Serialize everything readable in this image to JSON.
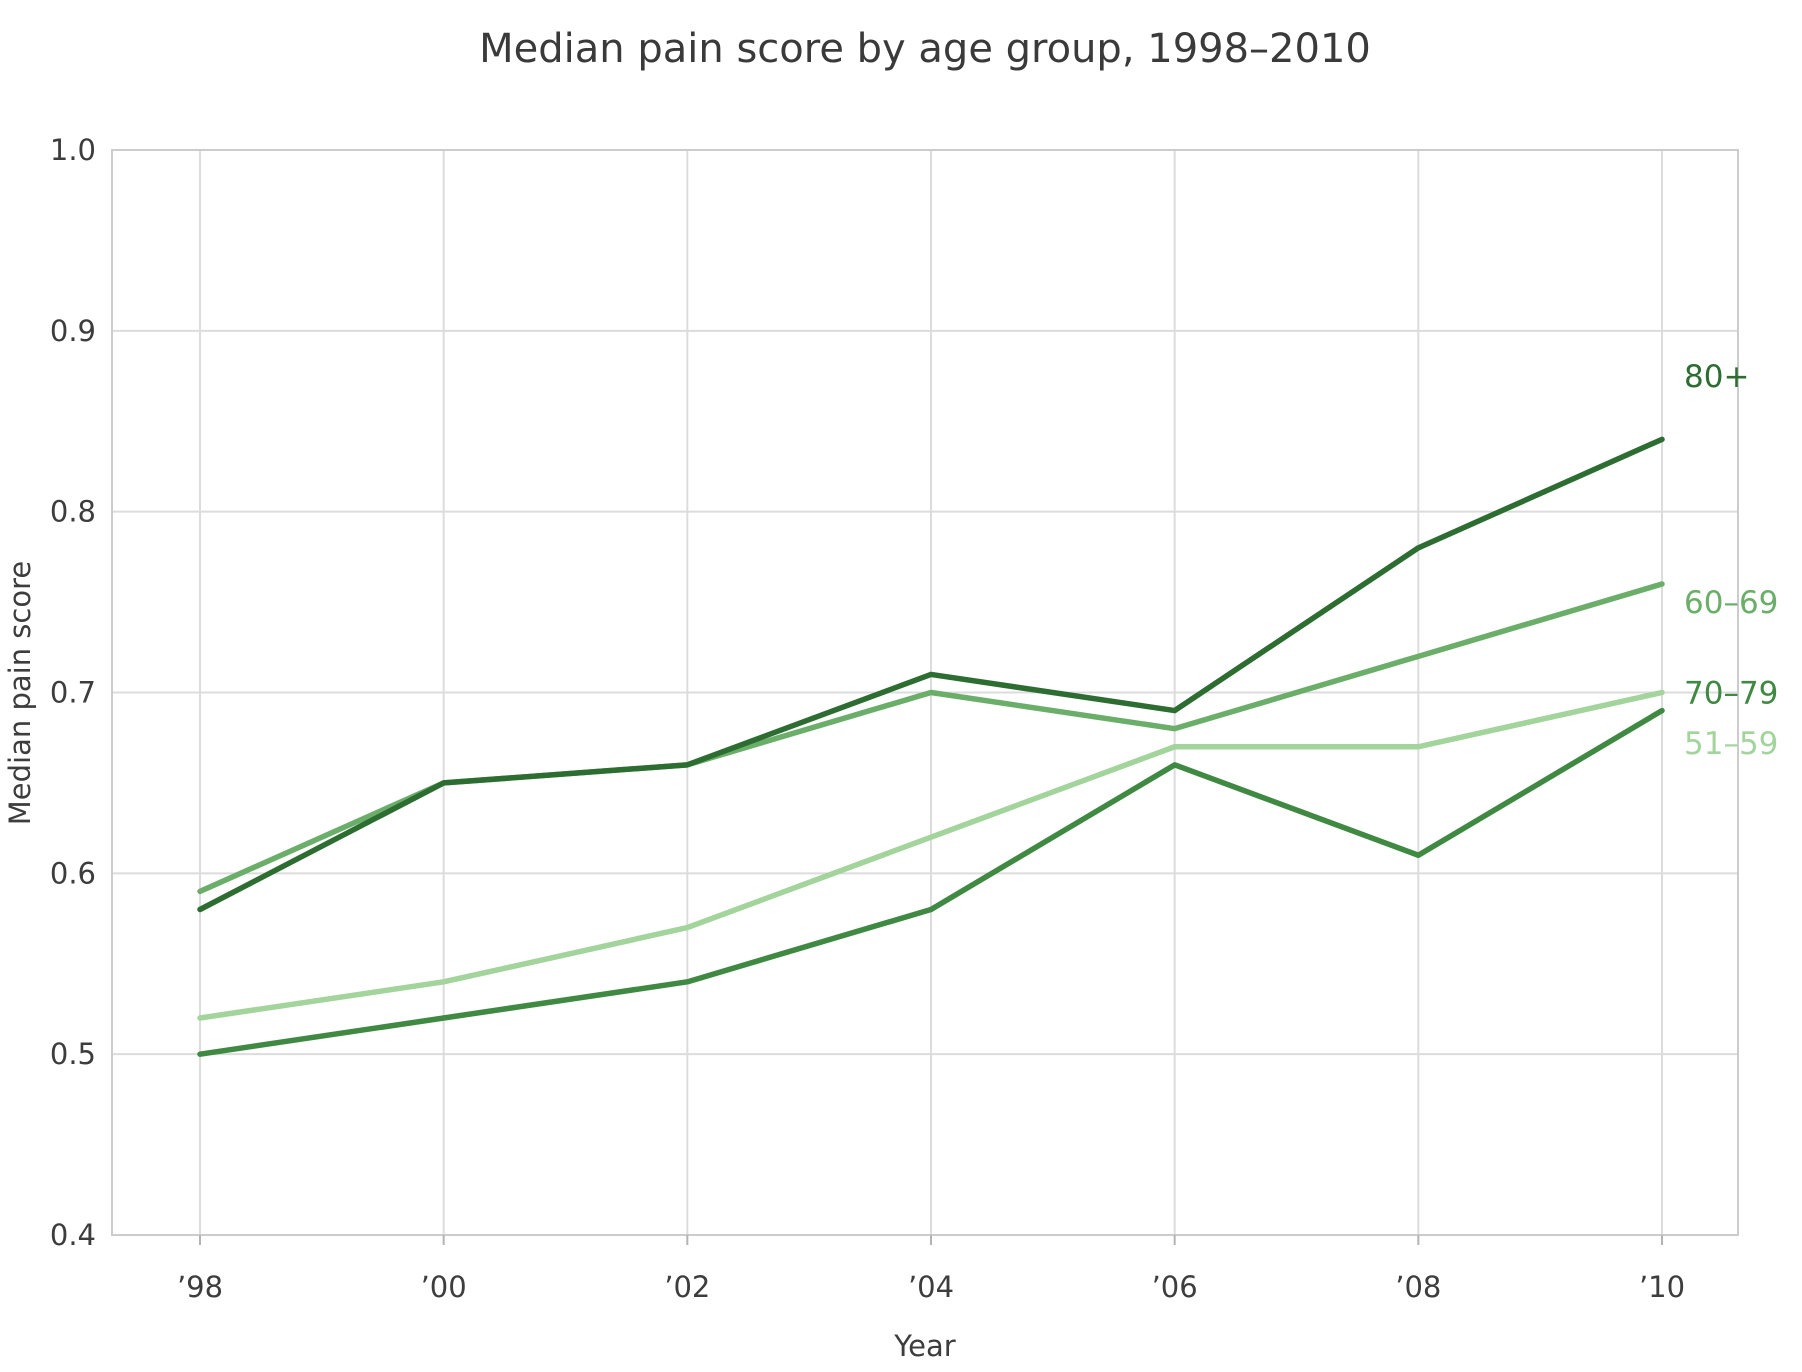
{
  "figure": {
    "background": "#ffffff",
    "grid_color": "#dcdcdc",
    "spine_color": "#cccccc",
    "tick_mark_color": "#b3b3b3",
    "text_color": "#3d3d3d",
    "title_color": "#3a3a3a"
  },
  "chart_data": {
    "type": "line",
    "title": "Median pain score by age group, 1998–2010",
    "xlabel": "Year",
    "ylabel": "Median pain score",
    "categories": [
      "’98",
      "’00",
      "’02",
      "’04",
      "’06",
      "’08",
      "’10"
    ],
    "years": [
      1998,
      2000,
      2002,
      2004,
      2006,
      2008,
      2010
    ],
    "ylim": [
      0.4,
      1.0
    ],
    "yticks": [
      "1.0",
      "0.9",
      "0.8",
      "0.7",
      "0.6",
      "0.5",
      "0.4"
    ],
    "grid": "on",
    "legend_position": "labels-at-line-ends-right",
    "series": [
      {
        "name": "80+",
        "color": "#2e6d32",
        "values": [
          0.58,
          0.65,
          0.66,
          0.71,
          0.69,
          0.78,
          0.84
        ],
        "label_y": 0.875
      },
      {
        "name": "60–69",
        "color": "#6aae6a",
        "values": [
          0.59,
          0.65,
          0.66,
          0.7,
          0.68,
          0.72,
          0.76
        ],
        "label_y": 0.75
      },
      {
        "name": "70–79",
        "color": "#3f8943",
        "values": [
          0.5,
          0.52,
          0.54,
          0.58,
          0.66,
          0.61,
          0.69
        ],
        "label_y": 0.7
      },
      {
        "name": "51–59",
        "color": "#a2d49c",
        "values": [
          0.52,
          0.54,
          0.57,
          0.62,
          0.67,
          0.67,
          0.7
        ],
        "label_y": 0.672
      }
    ]
  }
}
